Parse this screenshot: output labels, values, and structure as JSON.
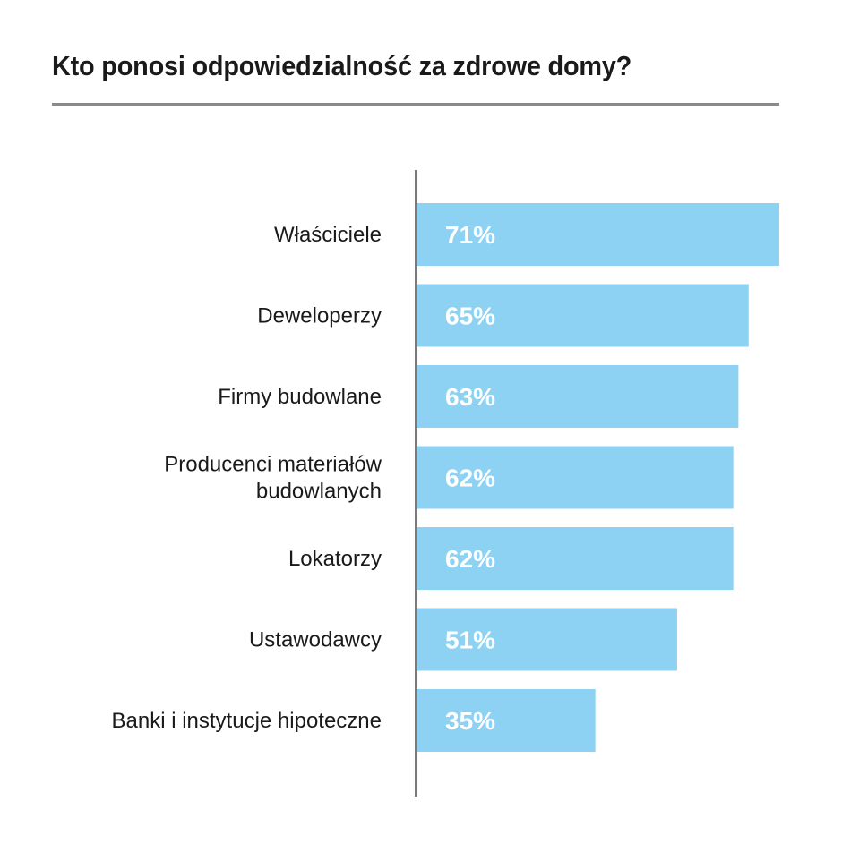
{
  "chart_data": {
    "type": "bar",
    "orientation": "horizontal",
    "title": "Kto ponosi odpowiedzialność za zdrowe domy?",
    "categories": [
      "Właściciele",
      "Deweloperzy",
      "Firmy budowlane",
      "Producenci materiałów budowlanych",
      "Lokatorzy",
      "Ustawodawcy",
      "Banki i instytucje hipoteczne"
    ],
    "category_lines": [
      [
        "Właściciele"
      ],
      [
        "Deweloperzy"
      ],
      [
        "Firmy budowlane"
      ],
      [
        "Producenci materiałów",
        "budowlanych"
      ],
      [
        "Lokatorzy"
      ],
      [
        "Ustawodawcy"
      ],
      [
        "Banki i instytucje hipoteczne"
      ]
    ],
    "values": [
      71,
      65,
      63,
      62,
      62,
      51,
      35
    ],
    "value_labels": [
      "71%",
      "65%",
      "63%",
      "62%",
      "62%",
      "51%",
      "35%"
    ],
    "unit": "%",
    "xlim": [
      0,
      71
    ],
    "grid": false,
    "colors": {
      "bar": "#8dd1f3",
      "value_text": "#ffffff",
      "axis": "#7a7a7a",
      "title_rule": "#8a8a8a"
    }
  }
}
